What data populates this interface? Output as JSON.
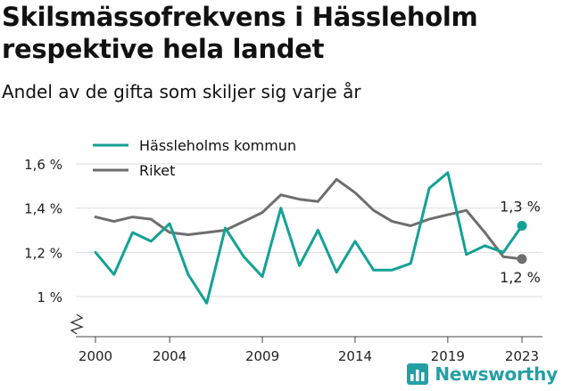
{
  "title": "Skilsmässofrekvens i Hässleholm respektive hela landet",
  "subtitle": "Andel av de gifta som skiljer sig varje år",
  "brand": "Newsworthy",
  "colors": {
    "teal": "#14a195",
    "gray": "#6e6e6e",
    "grid": "#dddddd",
    "brand": "#23a0a6"
  },
  "chart_data": {
    "type": "line",
    "title": "Skilsmässofrekvens i Hässleholm respektive hela landet",
    "subtitle": "Andel av de gifta som skiljer sig varje år",
    "xlabel": "",
    "ylabel": "",
    "x": [
      2000,
      2001,
      2002,
      2003,
      2004,
      2005,
      2006,
      2007,
      2008,
      2009,
      2010,
      2011,
      2012,
      2013,
      2014,
      2015,
      2016,
      2017,
      2018,
      2019,
      2020,
      2021,
      2022,
      2023
    ],
    "xticks": [
      2000,
      2004,
      2009,
      2014,
      2019,
      2023
    ],
    "yticks": [
      1.0,
      1.2,
      1.4,
      1.6
    ],
    "ytick_labels": [
      "1 %",
      "1,2 %",
      "1,4 %",
      "1,6 %"
    ],
    "ylim": [
      0.82,
      1.66
    ],
    "grid": "horizontal",
    "axis_break": true,
    "legend": "top-left",
    "series": [
      {
        "name": "Hässleholms kommun",
        "color": "#14a195",
        "values": [
          1.2,
          1.1,
          1.29,
          1.25,
          1.33,
          1.1,
          0.97,
          1.31,
          1.18,
          1.09,
          1.4,
          1.14,
          1.3,
          1.11,
          1.25,
          1.12,
          1.12,
          1.15,
          1.49,
          1.56,
          1.19,
          1.23,
          1.2,
          1.32
        ],
        "end_label": "1,3 %"
      },
      {
        "name": "Riket",
        "color": "#6e6e6e",
        "values": [
          1.36,
          1.34,
          1.36,
          1.35,
          1.29,
          1.28,
          1.29,
          1.3,
          1.34,
          1.38,
          1.46,
          1.44,
          1.43,
          1.53,
          1.47,
          1.39,
          1.34,
          1.32,
          1.35,
          1.37,
          1.39,
          1.29,
          1.18,
          1.17
        ],
        "end_label": "1,2 %"
      }
    ]
  }
}
